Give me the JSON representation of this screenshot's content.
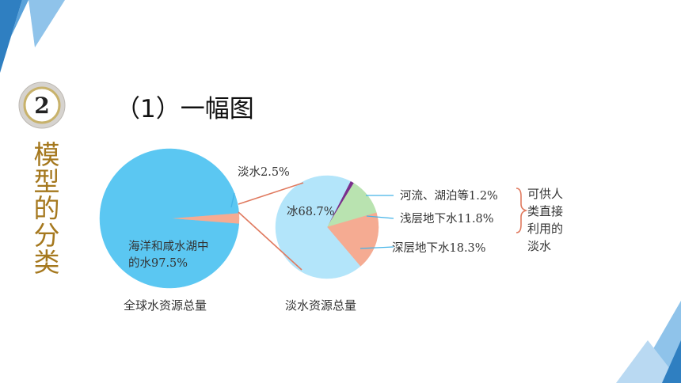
{
  "badge": {
    "number": "2"
  },
  "section_title": "模型的分类",
  "heading": "（1）一幅图",
  "chart_data": [
    {
      "type": "pie",
      "title": "全球水资源总量",
      "slices": [
        {
          "label": "海洋和咸水湖中的水97.5%",
          "value": 97.5,
          "color": "#5bc7f2"
        },
        {
          "label": "淡水2.5%",
          "value": 2.5,
          "color": "#f5ab92"
        }
      ]
    },
    {
      "type": "pie",
      "title": "淡水资源总量",
      "slices": [
        {
          "label": "冰68.7%",
          "value": 68.7,
          "color": "#b3e5fa"
        },
        {
          "label": "河流、湖泊等1.2%",
          "value": 1.2,
          "color": "#7a2f8c"
        },
        {
          "label": "浅层地下水11.8%",
          "value": 11.8,
          "color": "#b9e3b0"
        },
        {
          "label": "深层地下水18.3%",
          "value": 18.3,
          "color": "#f5ab92"
        }
      ]
    }
  ],
  "labels": {
    "ocean_line1": "海洋和咸水湖中",
    "ocean_line2": "的水97.5%",
    "fresh": "淡水2.5%",
    "ice": "冰68.7%",
    "rivers": "河流、湖泊等1.2%",
    "shallow": "浅层地下水11.8%",
    "deep": "深层地下水18.3%"
  },
  "side_note": [
    "可供人",
    "类直接",
    "利用的",
    "淡水"
  ],
  "colors": {
    "leader": "#43b3e8",
    "connector": "#e07a5f",
    "bracket": "#e07a5f",
    "deco_dark": "#2f7fc1",
    "deco_light": "#8fc3ea"
  }
}
